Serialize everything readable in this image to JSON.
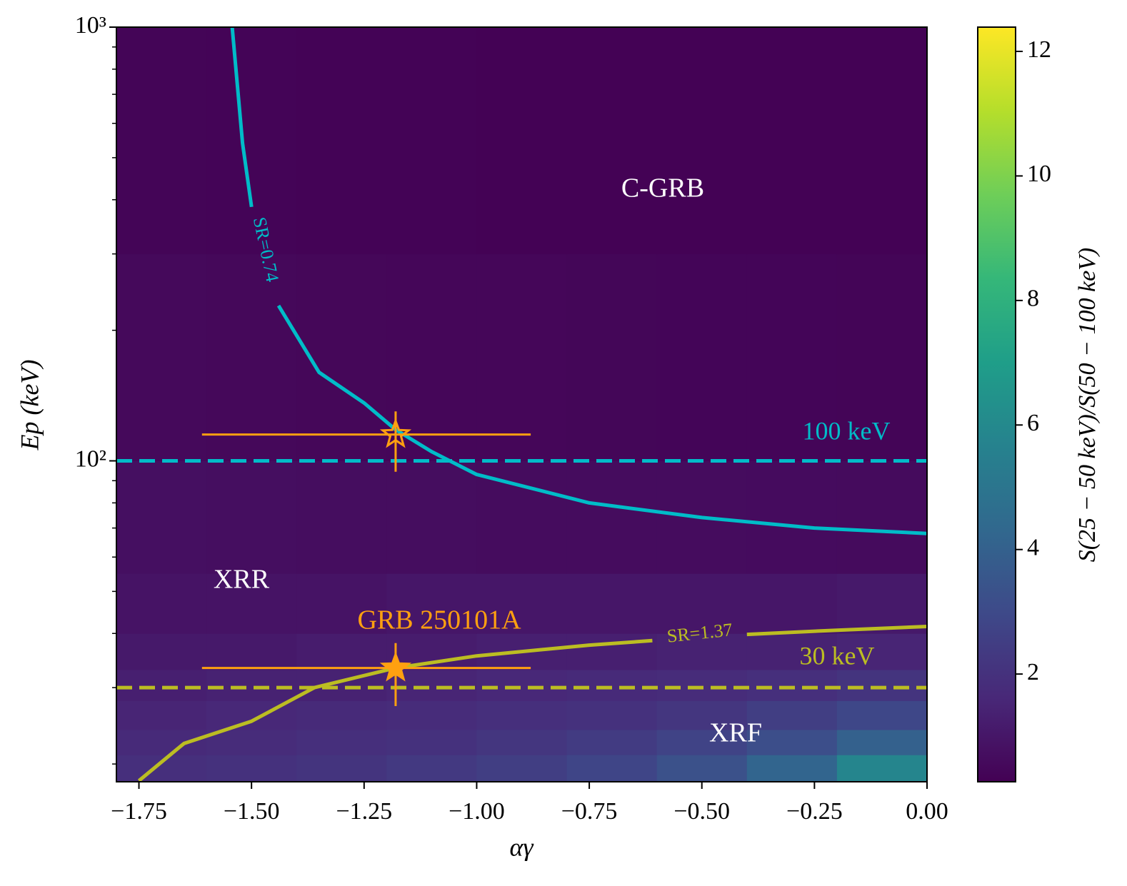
{
  "chart_data": {
    "type": "heatmap",
    "xlabel": "αγ",
    "ylabel": "Ep (keV)",
    "xlim": [
      -1.8,
      0
    ],
    "xticks": [
      {
        "value": -1.75,
        "label": "−1.75"
      },
      {
        "value": -1.5,
        "label": "−1.50"
      },
      {
        "value": -1.25,
        "label": "−1.25"
      },
      {
        "value": -1,
        "label": "−1.00"
      },
      {
        "value": -0.75,
        "label": "−0.75"
      },
      {
        "value": -0.5,
        "label": "−0.50"
      },
      {
        "value": -0.25,
        "label": "−0.25"
      },
      {
        "value": 0,
        "label": "0.00"
      }
    ],
    "ylim": [
      18.2,
      1000
    ],
    "yscale": "log",
    "yticks": [
      {
        "value": 100,
        "label": "10²"
      },
      {
        "value": 1000,
        "label": "10³"
      }
    ],
    "yminorticks": [
      20,
      30,
      40,
      50,
      60,
      70,
      80,
      90,
      200,
      300,
      400,
      500,
      600,
      700,
      800,
      900
    ],
    "heatmap": {
      "colormap": "viridis",
      "x_edges": [
        -1.8,
        -1.6,
        -1.4,
        -1.2,
        -1.0,
        -0.8,
        -0.6,
        -0.4,
        -0.2,
        0
      ],
      "y_edges": [
        18.2,
        21,
        24,
        28,
        33,
        40,
        55,
        100,
        300,
        1000
      ],
      "z": [
        [
          1.9,
          2.0,
          2.1,
          2.3,
          2.5,
          2.8,
          3.3,
          4.2,
          5.8
        ],
        [
          1.7,
          1.8,
          1.9,
          2.0,
          2.2,
          2.4,
          2.7,
          3.2,
          4.0
        ],
        [
          1.5,
          1.6,
          1.7,
          1.8,
          1.9,
          2.0,
          2.2,
          2.5,
          2.9
        ],
        [
          1.3,
          1.4,
          1.4,
          1.5,
          1.6,
          1.7,
          1.8,
          1.9,
          2.1
        ],
        [
          1.1,
          1.1,
          1.2,
          1.2,
          1.3,
          1.3,
          1.4,
          1.4,
          1.5
        ],
        [
          0.9,
          0.9,
          0.9,
          1.0,
          1.0,
          1.0,
          1.0,
          1.0,
          1.1
        ],
        [
          0.75,
          0.72,
          0.7,
          0.68,
          0.66,
          0.65,
          0.64,
          0.63,
          0.62
        ],
        [
          0.55,
          0.5,
          0.47,
          0.45,
          0.44,
          0.43,
          0.42,
          0.41,
          0.4
        ],
        [
          0.4,
          0.37,
          0.35,
          0.33,
          0.32,
          0.31,
          0.3,
          0.3,
          0.29
        ]
      ]
    },
    "colorbar": {
      "label": "S(25 − 50 keV)/S(50 − 100 keV)",
      "lim": [
        0.27,
        12.39
      ],
      "ticks": [
        2,
        4,
        6,
        8,
        10,
        12
      ]
    },
    "contours": [
      {
        "label": "SR=0.74",
        "color": "#00bcc8",
        "x": [
          -1.543,
          -1.52,
          -1.5,
          null,
          -1.44,
          -1.35,
          -1.25,
          -1.18,
          -1.1,
          -1.0,
          -0.75,
          -0.5,
          -0.25,
          0
        ],
        "y": [
          1000,
          540,
          385,
          null,
          228,
          160,
          136,
          118,
          105,
          93,
          80,
          74,
          70,
          68
        ]
      },
      {
        "label": "SR=1.37",
        "color": "#bcbd22",
        "x": [
          -1.75,
          -1.65,
          -1.5,
          -1.36,
          -1.18,
          -1.0,
          -0.75,
          -0.61,
          null,
          -0.4,
          -0.2,
          0
        ],
        "y": [
          18.3,
          22.3,
          25.1,
          30,
          33.3,
          35.5,
          37.6,
          38.5,
          null,
          39.8,
          40.7,
          41.5
        ]
      }
    ],
    "hlines": [
      {
        "value": 100,
        "label": "100 keV",
        "color": "#00bcc8",
        "style": "dashed"
      },
      {
        "value": 30,
        "label": "30 keV",
        "color": "#bcbd22",
        "style": "dashed"
      }
    ],
    "points": [
      {
        "label": "GRB 250101A",
        "marker": "star",
        "filled": true,
        "color": "#ffa010",
        "x": -1.18,
        "y": 33.3,
        "x_lower": -1.61,
        "x_upper": -0.88,
        "y_lower": 27.2,
        "y_upper": 38.0
      },
      {
        "marker": "star",
        "filled": false,
        "color": "#ffa010",
        "x": -1.18,
        "y": 115,
        "x_lower": -1.61,
        "x_upper": -0.88,
        "y_lower": 94.4,
        "y_upper": 130
      }
    ],
    "annotations": [
      {
        "text": "C-GRB"
      },
      {
        "text": "XRR"
      },
      {
        "text": "XRF"
      }
    ]
  }
}
